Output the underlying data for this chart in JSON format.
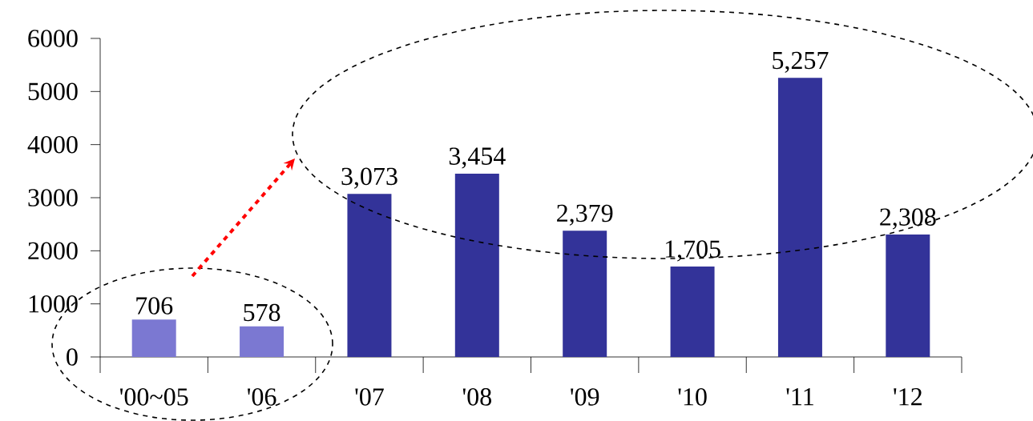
{
  "chart_data": {
    "type": "bar",
    "categories": [
      "'00~05",
      "'06",
      "'07",
      "'08",
      "'09",
      "'10",
      "'11",
      "'12"
    ],
    "values": [
      706,
      578,
      3073,
      3454,
      2379,
      1705,
      5257,
      2308
    ],
    "colors": [
      "#7b78d2",
      "#7b78d2",
      "#333399",
      "#333399",
      "#333399",
      "#333399",
      "#333399",
      "#333399"
    ],
    "value_labels": [
      "706",
      "578",
      "3,073",
      "3,454",
      "2,379",
      "1,705",
      "5,257",
      "2,308"
    ],
    "ylim": [
      0,
      6000
    ],
    "yticks": [
      0,
      1000,
      2000,
      3000,
      4000,
      5000,
      6000
    ]
  }
}
